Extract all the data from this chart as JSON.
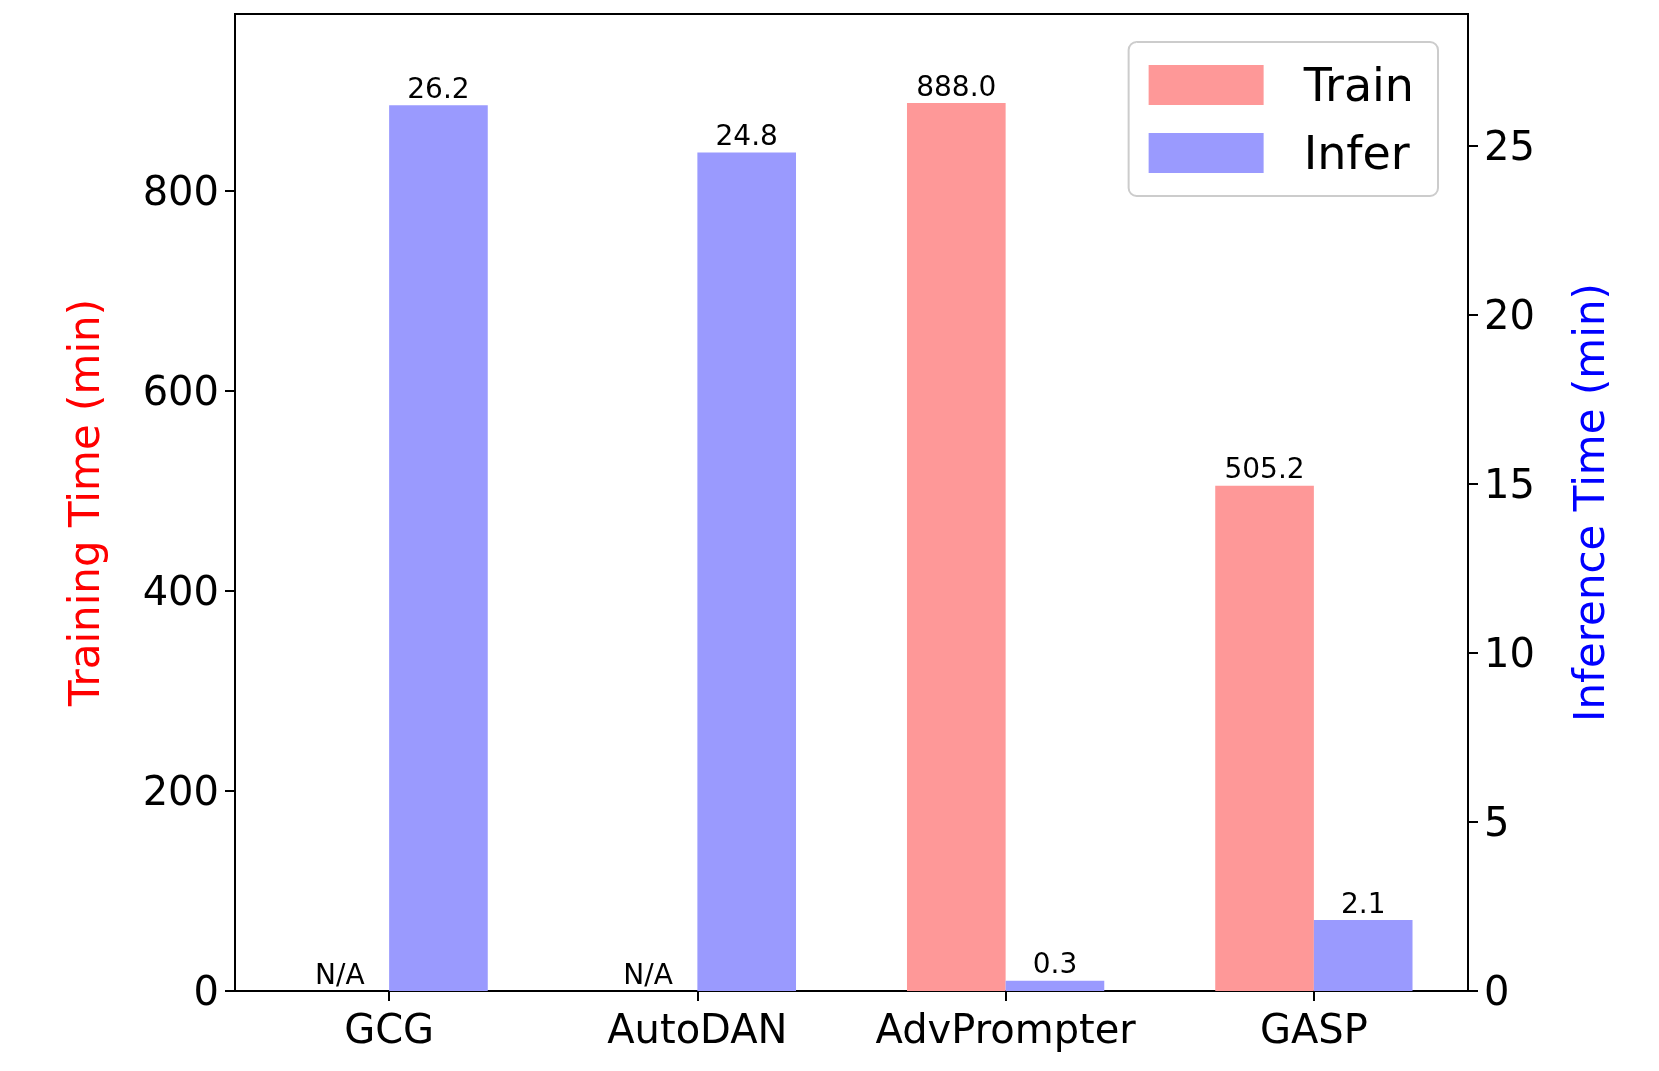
{
  "chart_data": {
    "type": "bar",
    "categories": [
      "GCG",
      "AutoDAN",
      "AdvPrompter",
      "GASP"
    ],
    "series": [
      {
        "name": "Train",
        "color": "#fe9898",
        "values": [
          null,
          null,
          888.0,
          505.2
        ],
        "value_labels": [
          "N/A",
          "N/A",
          "888.0",
          "505.2"
        ]
      },
      {
        "name": "Infer",
        "color": "#9a9afe",
        "axis": "y2",
        "values": [
          26.2,
          24.8,
          0.3,
          2.1
        ],
        "value_labels": [
          "26.2",
          "24.8",
          "0.3",
          "2.1"
        ]
      }
    ],
    "ylabel": "Training Time (min)",
    "y2label": "Inference Time (min)",
    "ylim": [
      0,
      977
    ],
    "yticks": [
      0,
      200,
      400,
      600,
      800
    ],
    "y2lim": [
      0,
      28.9
    ],
    "y2ticks": [
      0,
      5,
      10,
      15,
      20,
      25
    ],
    "legend": "top right",
    "grid": false
  }
}
